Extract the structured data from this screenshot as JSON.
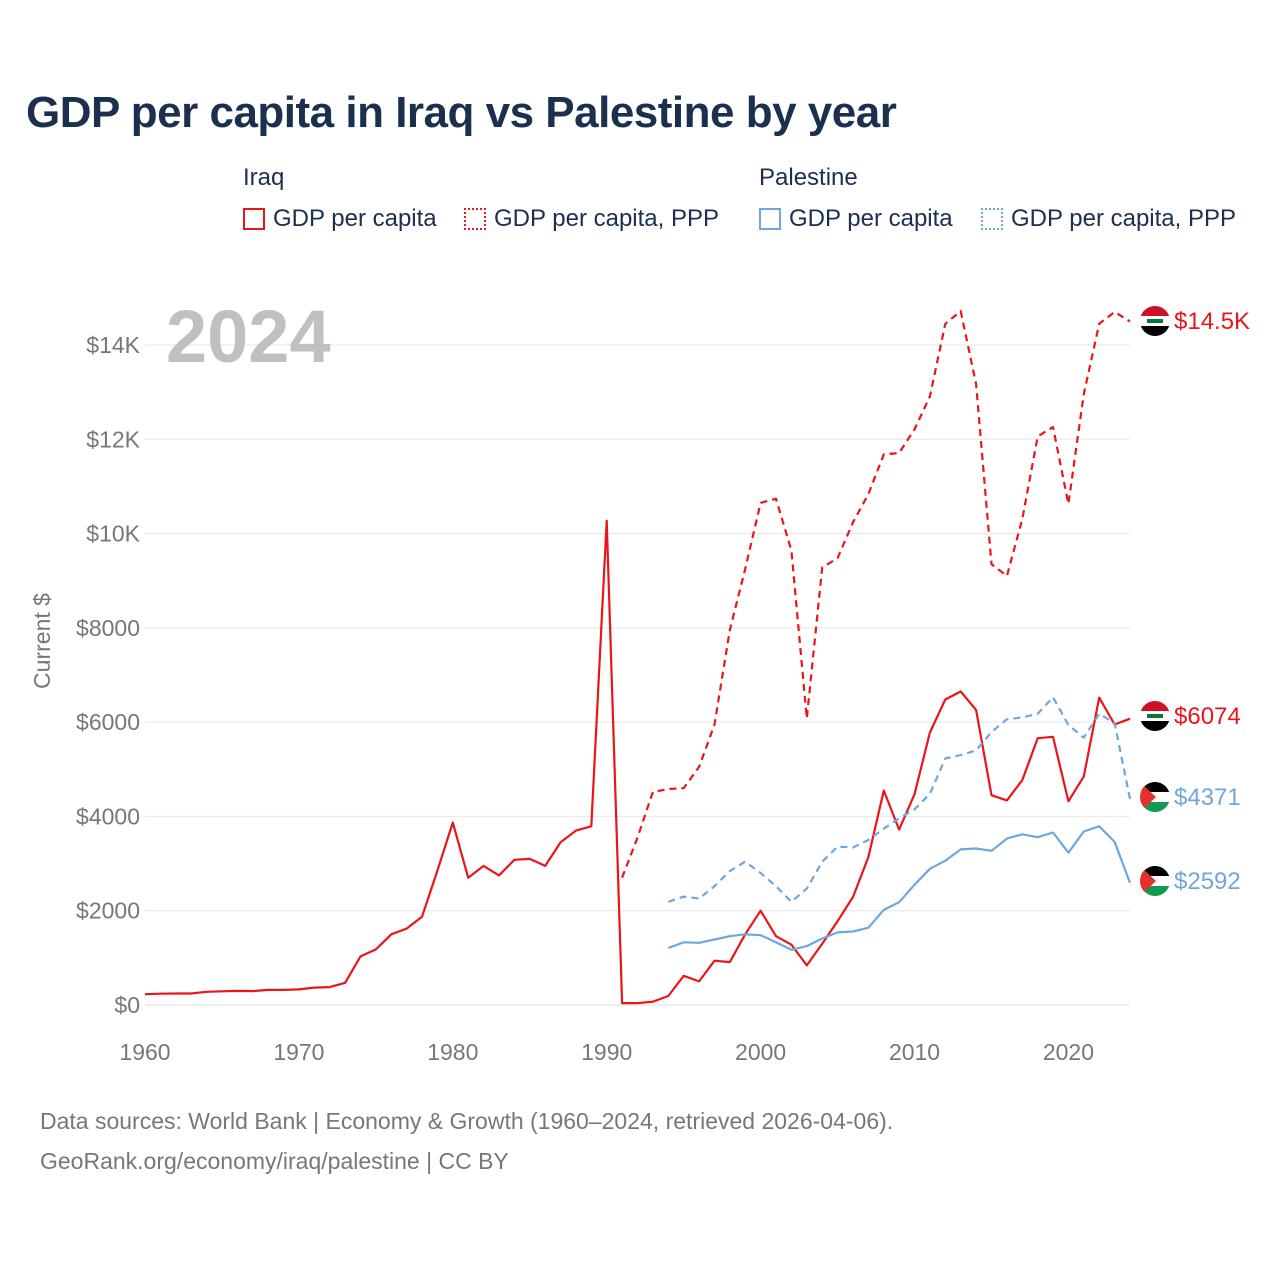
{
  "title": "GDP per capita in Iraq vs Palestine by year",
  "legend": {
    "groups": [
      {
        "name": "Iraq",
        "items": [
          "GDP per capita",
          "GDP per capita, PPP"
        ],
        "color": "#e8161b"
      },
      {
        "name": "Palestine",
        "items": [
          "GDP per capita",
          "GDP per capita, PPP"
        ],
        "color": "#6fa7dc"
      }
    ]
  },
  "watermark_year": "2024",
  "end_labels": {
    "iraq_ppp": "$14.5K",
    "iraq_gdp": "$6074",
    "palestine_ppp": "$4371",
    "palestine_gdp": "$2592"
  },
  "footer": {
    "line1": "Data sources: World Bank | Economy & Growth (1960–2024, retrieved 2026-04-06).",
    "line2": "GeoRank.org/economy/iraq/palestine | CC BY"
  },
  "chart_data": {
    "type": "line",
    "title": "GDP per capita in Iraq vs Palestine by year",
    "xlabel": "",
    "ylabel": "Current $",
    "xlim": [
      1960,
      2024
    ],
    "ylim": [
      0,
      15000
    ],
    "xticks": [
      1960,
      1970,
      1980,
      1990,
      2000,
      2010,
      2020
    ],
    "xtick_labels": [
      "1960",
      "1970",
      "1980",
      "1990",
      "2000",
      "2010",
      "2020"
    ],
    "yticks": [
      0,
      2000,
      4000,
      6000,
      8000,
      10000,
      12000,
      14000
    ],
    "ytick_labels": [
      "$0",
      "$2000",
      "$4000",
      "$6000",
      "$8000",
      "$10K",
      "$12K",
      "$14K"
    ],
    "grid": true,
    "series": [
      {
        "name": "Iraq GDP per capita",
        "color": "#e8161b",
        "dash": "solid",
        "x": [
          1960,
          1961,
          1962,
          1963,
          1964,
          1965,
          1966,
          1967,
          1968,
          1969,
          1970,
          1971,
          1972,
          1973,
          1974,
          1975,
          1976,
          1977,
          1978,
          1979,
          1980,
          1981,
          1982,
          1983,
          1984,
          1985,
          1986,
          1987,
          1988,
          1989,
          1990,
          1991,
          1992,
          1993,
          1994,
          1995,
          1996,
          1997,
          1998,
          1999,
          2000,
          2001,
          2002,
          2003,
          2004,
          2005,
          2006,
          2007,
          2008,
          2009,
          2010,
          2011,
          2012,
          2013,
          2014,
          2015,
          2016,
          2017,
          2018,
          2019,
          2020,
          2021,
          2022,
          2023,
          2024
        ],
        "values": [
          230,
          240,
          245,
          245,
          280,
          290,
          300,
          295,
          320,
          320,
          330,
          370,
          380,
          470,
          1030,
          1180,
          1500,
          1620,
          1870,
          2850,
          3870,
          2700,
          2950,
          2750,
          3080,
          3100,
          2950,
          3450,
          3700,
          3790,
          10270,
          40,
          40,
          70,
          190,
          620,
          500,
          940,
          910,
          1500,
          2000,
          1460,
          1280,
          840,
          1300,
          1780,
          2290,
          3140,
          4550,
          3720,
          4470,
          5780,
          6480,
          6650,
          6260,
          4450,
          4340,
          4770,
          5660,
          5690,
          4320,
          4850,
          6520,
          5950,
          6074
        ]
      },
      {
        "name": "Iraq GDP per capita, PPP",
        "color": "#e8161b",
        "dash": "dashed",
        "x": [
          1991,
          1992,
          1993,
          1994,
          1995,
          1996,
          1997,
          1998,
          1999,
          2000,
          2001,
          2002,
          2003,
          2004,
          2005,
          2006,
          2007,
          2008,
          2009,
          2010,
          2011,
          2012,
          2013,
          2014,
          2015,
          2016,
          2017,
          2018,
          2019,
          2020,
          2021,
          2022,
          2023,
          2024
        ],
        "values": [
          2700,
          3550,
          4520,
          4580,
          4600,
          5050,
          5950,
          7950,
          9250,
          10650,
          10740,
          9640,
          6080,
          9280,
          9480,
          10240,
          10840,
          11680,
          11710,
          12210,
          12910,
          14450,
          14720,
          13170,
          9350,
          9100,
          10310,
          12060,
          12260,
          10630,
          12960,
          14450,
          14700,
          14500
        ]
      },
      {
        "name": "Palestine GDP per capita",
        "color": "#6fa7dc",
        "dash": "solid",
        "x": [
          1994,
          1995,
          1996,
          1997,
          1998,
          1999,
          2000,
          2001,
          2002,
          2003,
          2004,
          2005,
          2006,
          2007,
          2008,
          2009,
          2010,
          2011,
          2012,
          2013,
          2014,
          2015,
          2016,
          2017,
          2018,
          2019,
          2020,
          2021,
          2022,
          2023,
          2024
        ],
        "values": [
          1210,
          1330,
          1320,
          1390,
          1460,
          1500,
          1480,
          1330,
          1170,
          1250,
          1410,
          1540,
          1560,
          1640,
          2020,
          2180,
          2550,
          2890,
          3060,
          3300,
          3320,
          3270,
          3530,
          3620,
          3560,
          3660,
          3230,
          3680,
          3790,
          3460,
          2592
        ]
      },
      {
        "name": "Palestine GDP per capita, PPP",
        "color": "#6fa7dc",
        "dash": "dashed",
        "x": [
          1994,
          1995,
          1996,
          1997,
          1998,
          1999,
          2000,
          2001,
          2002,
          2003,
          2004,
          2005,
          2006,
          2007,
          2008,
          2009,
          2010,
          2011,
          2012,
          2013,
          2014,
          2015,
          2016,
          2017,
          2018,
          2019,
          2020,
          2021,
          2022,
          2023,
          2024
        ],
        "values": [
          2190,
          2300,
          2260,
          2520,
          2840,
          3040,
          2800,
          2520,
          2190,
          2470,
          3040,
          3360,
          3340,
          3500,
          3740,
          3960,
          4150,
          4480,
          5230,
          5300,
          5400,
          5790,
          6060,
          6100,
          6180,
          6530,
          5940,
          5670,
          6180,
          5980,
          4371
        ]
      }
    ]
  }
}
